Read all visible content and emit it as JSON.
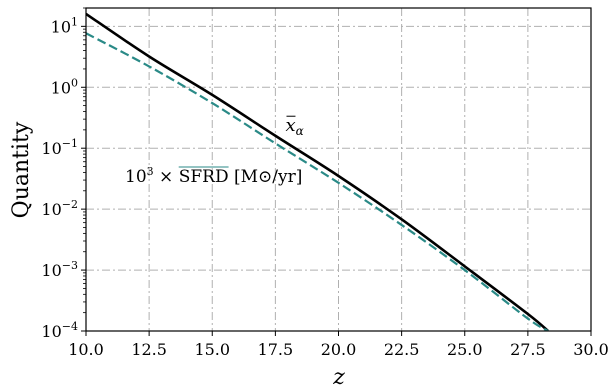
{
  "chart_data": {
    "type": "line",
    "xlabel": "z",
    "ylabel": "Quantity",
    "xlim": [
      10.0,
      30.0
    ],
    "ylim": [
      0.0001,
      20
    ],
    "yscale": "log",
    "grid": true,
    "grid_style": "dash-dot",
    "xticks": [
      10.0,
      12.5,
      15.0,
      17.5,
      20.0,
      22.5,
      25.0,
      27.5,
      30.0
    ],
    "xtick_labels": [
      "10.0",
      "12.5",
      "15.0",
      "17.5",
      "20.0",
      "22.5",
      "25.0",
      "27.5",
      "30.0"
    ],
    "yticks": [
      0.0001,
      0.001,
      0.01,
      0.1,
      1,
      10
    ],
    "ytick_labels": [
      {
        "base": "10",
        "exp": "−4"
      },
      {
        "base": "10",
        "exp": "−3"
      },
      {
        "base": "10",
        "exp": "−2"
      },
      {
        "base": "10",
        "exp": "−1"
      },
      {
        "base": "10",
        "exp": "0"
      },
      {
        "base": "10",
        "exp": "1"
      }
    ],
    "series": [
      {
        "name": "x̄_α",
        "label_parts": {
          "symbol": "x",
          "subscript": "α"
        },
        "color": "#000000",
        "linestyle": "solid",
        "x": [
          10.0,
          12.5,
          15.0,
          17.5,
          20.0,
          22.5,
          25.0,
          27.5,
          28.3
        ],
        "values": [
          16.0,
          3.2,
          0.75,
          0.16,
          0.035,
          0.0068,
          0.00115,
          0.00019,
          0.0001
        ]
      },
      {
        "name": "10³ × SFRD [M⊙/yr]",
        "label_parts": {
          "prefix": "10",
          "prefix_exp": "3",
          "times": " × ",
          "overlined": "SFRD",
          "unit": " [M⊙/yr]"
        },
        "color": "#2a8a87",
        "linestyle": "dashed",
        "x": [
          10.0,
          12.5,
          15.0,
          17.5,
          20.0,
          22.5,
          25.0,
          27.5,
          28.3
        ],
        "values": [
          7.7,
          2.2,
          0.55,
          0.12,
          0.027,
          0.0055,
          0.001,
          0.00016,
          0.0001
        ]
      }
    ]
  }
}
